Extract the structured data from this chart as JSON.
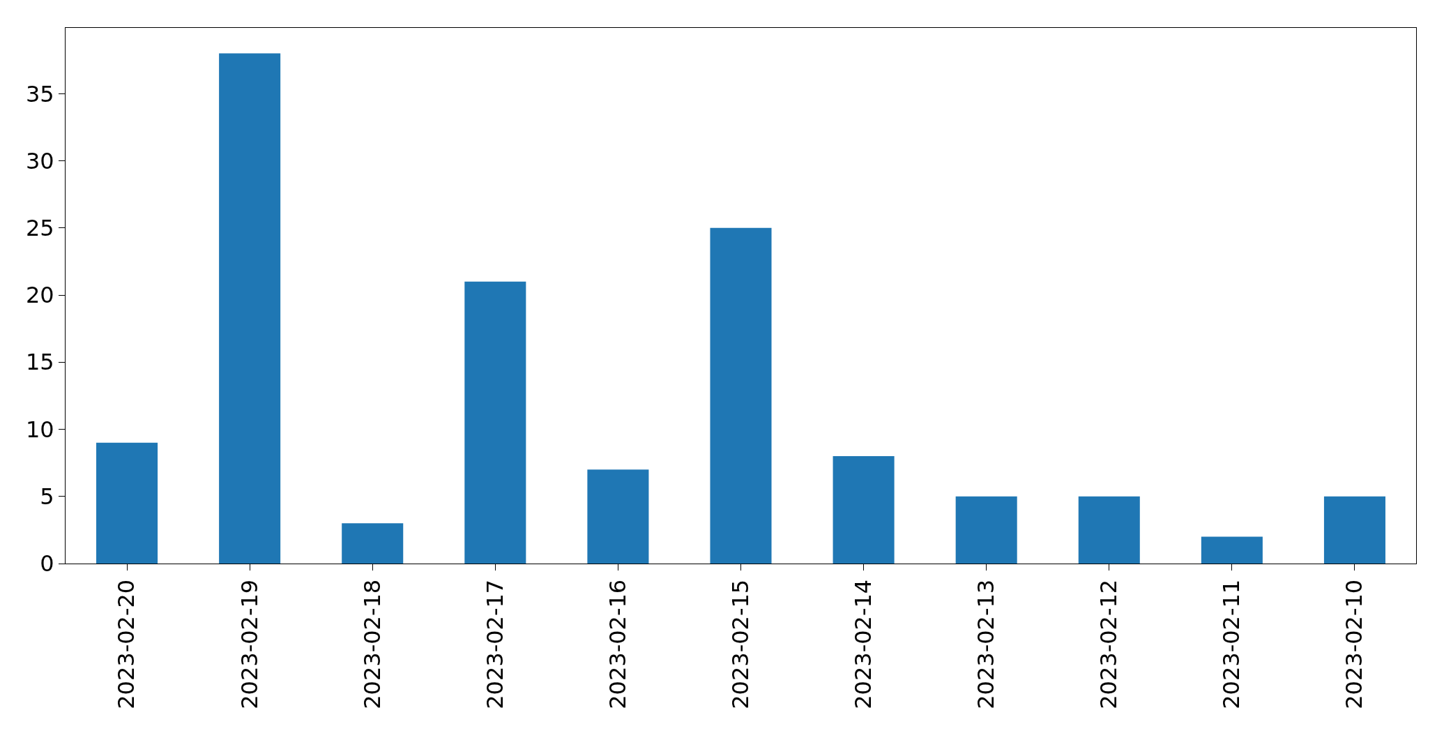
{
  "chart_data": {
    "type": "bar",
    "categories": [
      "2023-02-20",
      "2023-02-19",
      "2023-02-18",
      "2023-02-17",
      "2023-02-16",
      "2023-02-15",
      "2023-02-14",
      "2023-02-13",
      "2023-02-12",
      "2023-02-11",
      "2023-02-10"
    ],
    "values": [
      9,
      38,
      3,
      21,
      7,
      25,
      8,
      5,
      5,
      2,
      5
    ],
    "color": "#1f77b4",
    "ylim": [
      0,
      39.9
    ],
    "yticks": [
      0,
      5,
      10,
      15,
      20,
      25,
      30,
      35
    ],
    "grid": false
  }
}
